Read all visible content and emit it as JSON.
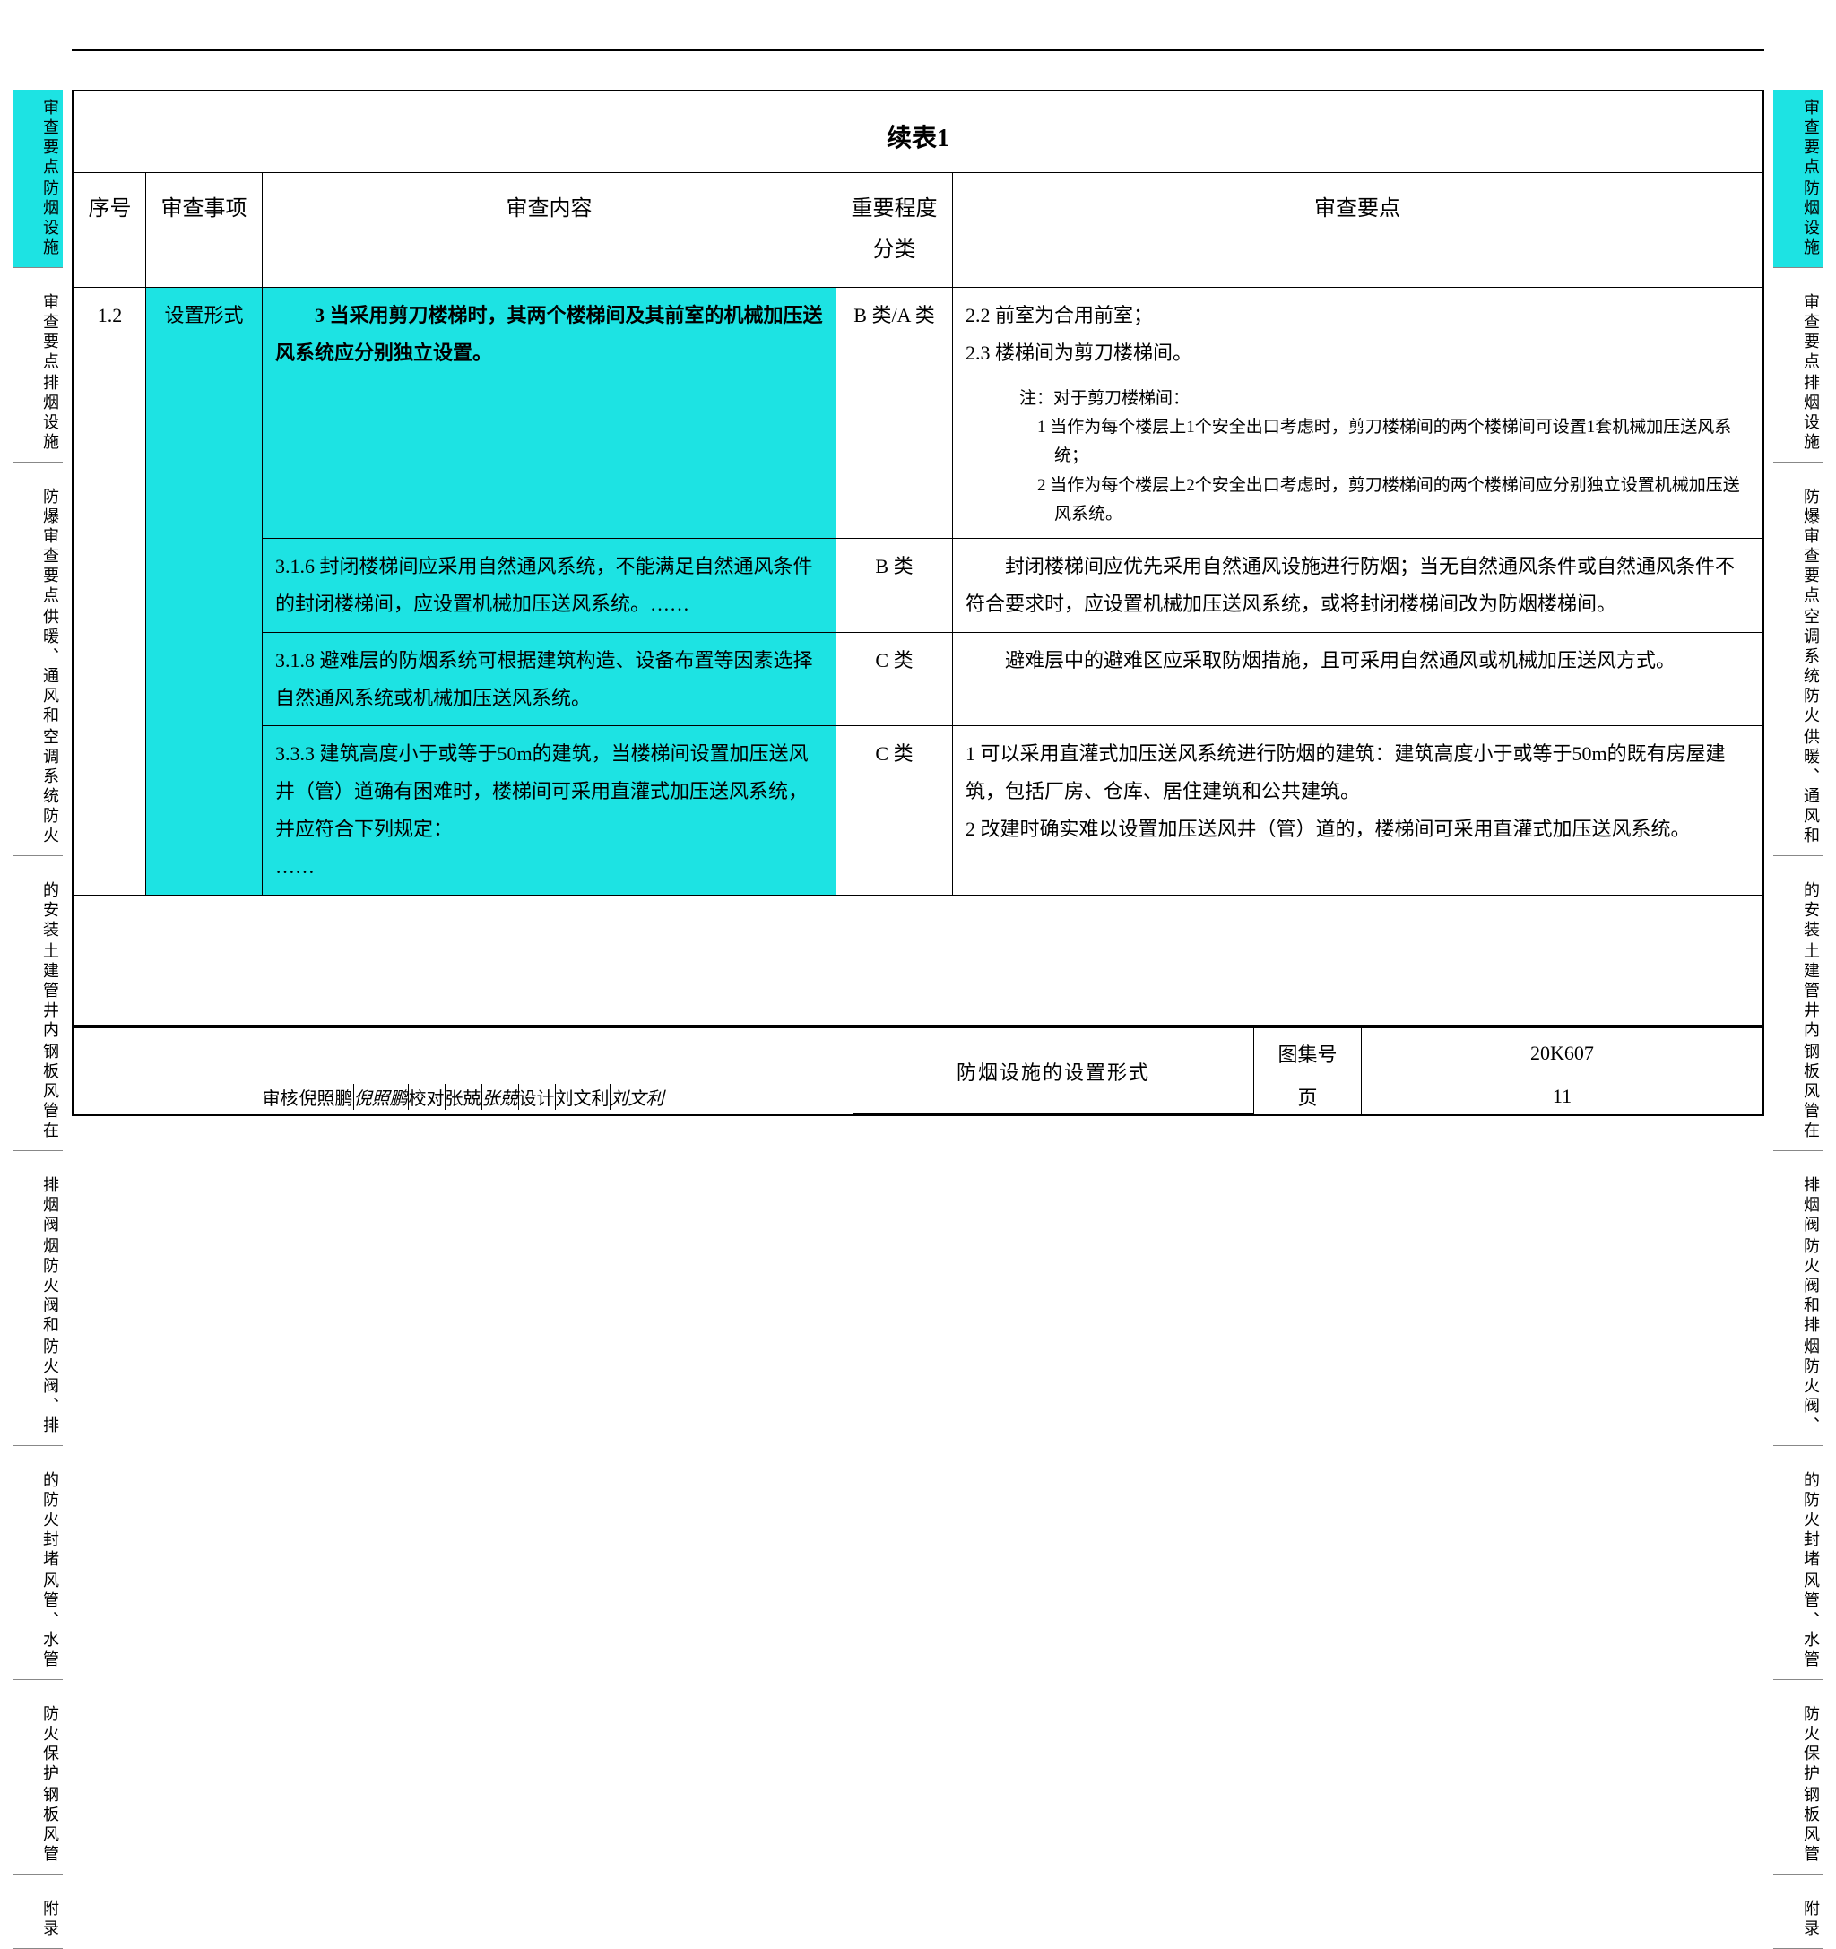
{
  "title": "续表1",
  "headers": {
    "seq": "序号",
    "item": "审查事项",
    "content": "审查内容",
    "class": "重要程度分类",
    "points": "审查要点"
  },
  "seq_value": "1.2",
  "item_value": "设置形式",
  "rows": [
    {
      "content": "　　3 当采用剪刀楼梯时，其两个楼梯间及其前室的机械加压送风系统应分别独立设置。",
      "content_bold": true,
      "class": "B 类/A 类",
      "points_lines": [
        "2.2 前室为合用前室；",
        "2.3 楼梯间为剪刀楼梯间。"
      ],
      "note_label": "注：对于剪刀楼梯间：",
      "note_items": [
        "1 当作为每个楼层上1个安全出口考虑时，剪刀楼梯间的两个楼梯间可设置1套机械加压送风系统；",
        "2 当作为每个楼层上2个安全出口考虑时，剪刀楼梯间的两个楼梯间应分别独立设置机械加压送风系统。"
      ]
    },
    {
      "content": "3.1.6 封闭楼梯间应采用自然通风系统，不能满足自然通风条件的封闭楼梯间，应设置机械加压送风系统。……",
      "class": "B 类",
      "points": "　　封闭楼梯间应优先采用自然通风设施进行防烟；当无自然通风条件或自然通风条件不符合要求时，应设置机械加压送风系统，或将封闭楼梯间改为防烟楼梯间。"
    },
    {
      "content": "3.1.8 避难层的防烟系统可根据建筑构造、设备布置等因素选择自然通风系统或机械加压送风系统。",
      "class": "C 类",
      "points": "　　避难层中的避难区应采取防烟措施，且可采用自然通风或机械加压送风方式。"
    },
    {
      "content": "3.3.3 建筑高度小于或等于50m的建筑，当楼梯间设置加压送风井（管）道确有困难时，楼梯间可采用直灌式加压送风系统，并应符合下列规定：\n……",
      "class": "C 类",
      "points_multi": [
        "1 可以采用直灌式加压送风系统进行防烟的建筑：建筑高度小于或等于50m的既有房屋建筑，包括厂房、仓库、居住建筑和公共建筑。",
        "2 改建时确实难以设置加压送风井（管）道的，楼梯间可采用直灌式加压送风系统。"
      ]
    }
  ],
  "title_block": {
    "main": "防烟设施的设置形式",
    "atlas_label": "图集号",
    "atlas_value": "20K607",
    "page_label": "页",
    "page_value": "11",
    "sigs": {
      "review_label": "审核",
      "review_name": "倪照鹏",
      "review_sig": "倪照鹏",
      "check_label": "校对",
      "check_name": "张兢",
      "check_sig": "张兢",
      "design_label": "设计",
      "design_name": "刘文利",
      "design_sig": "刘文利"
    }
  },
  "tabs_left": [
    {
      "lines": [
        "审查要点",
        "防烟设施"
      ],
      "hl": true
    },
    {
      "lines": [
        "审查要点",
        "排烟设施"
      ]
    },
    {
      "lines": [
        "防爆审查要点",
        "供暖、通风和",
        "空调系统防火"
      ]
    },
    {
      "lines": [
        "的安装",
        "土建管井内",
        "钢板风管在"
      ]
    },
    {
      "lines": [
        "排烟阀",
        "烟防火阀和",
        "防火阀、排"
      ]
    },
    {
      "lines": [
        "的防火封堵",
        "风管、水管"
      ]
    },
    {
      "lines": [
        "防火保护",
        "钢板风管"
      ]
    },
    {
      "lines": [
        "附录"
      ]
    }
  ],
  "tabs_right": [
    {
      "lines": [
        "审查要点",
        "防烟设施"
      ],
      "hl": true
    },
    {
      "lines": [
        "审查要点",
        "排烟设施"
      ]
    },
    {
      "lines": [
        "防爆审查要点",
        "空调系统防火",
        "供暖、通风和"
      ]
    },
    {
      "lines": [
        "的安装",
        "土建管井内",
        "钢板风管在"
      ]
    },
    {
      "lines": [
        "排烟阀",
        "防火阀和排",
        "烟防火阀、"
      ]
    },
    {
      "lines": [
        "的防火封堵",
        "风管、水管"
      ]
    },
    {
      "lines": [
        "防火保护",
        "钢板风管"
      ]
    },
    {
      "lines": [
        "附录"
      ]
    }
  ]
}
